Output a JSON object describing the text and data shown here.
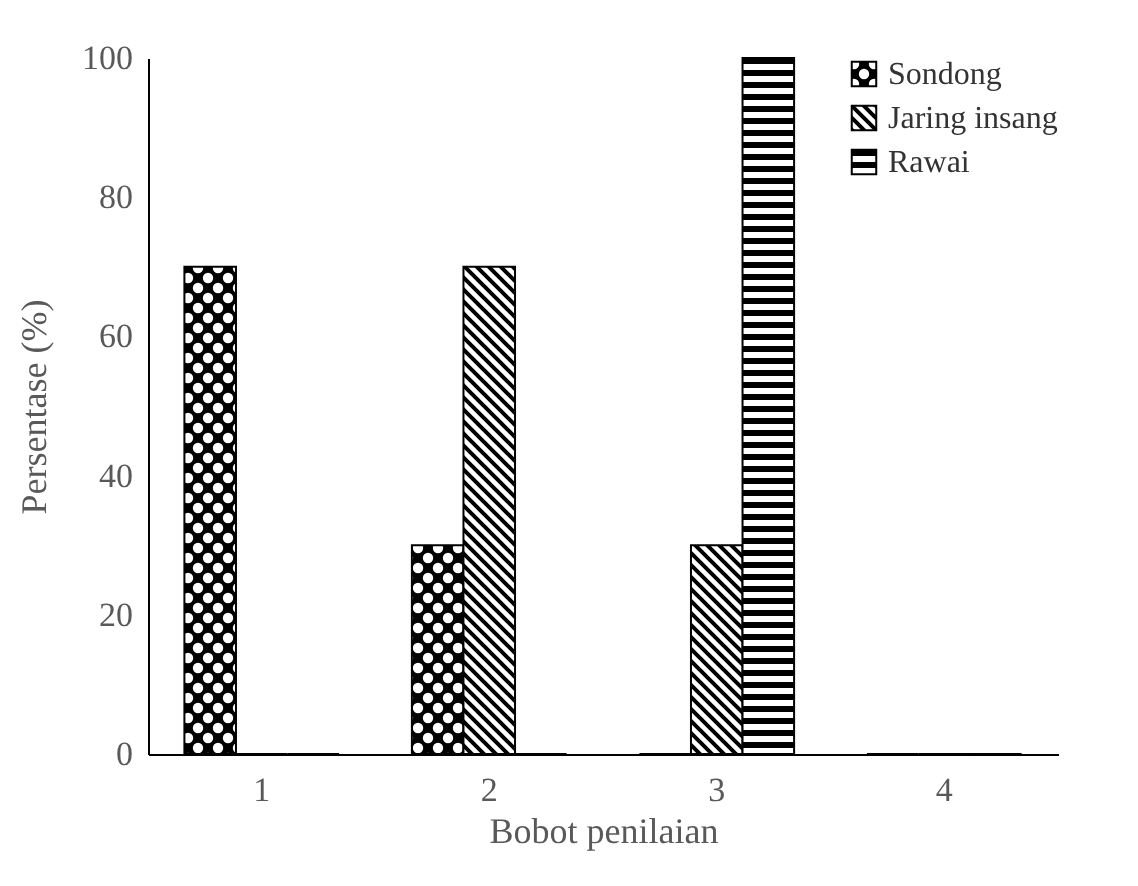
{
  "chart_data": {
    "type": "bar",
    "xlabel": "Bobot penilaian",
    "ylabel": "Persentase (%)",
    "categories": [
      "1",
      "2",
      "3",
      "4"
    ],
    "series": [
      {
        "name": "Sondong",
        "color": "#000000",
        "values": [
          70,
          30,
          0,
          0
        ]
      },
      {
        "name": "Jaring insang",
        "color": "#000000",
        "values": [
          0,
          70,
          30,
          0
        ]
      },
      {
        "name": "Rawai",
        "color": "#000000",
        "values": [
          0,
          0,
          100,
          0
        ]
      }
    ],
    "ylim": [
      0,
      100
    ],
    "yticks": [
      0,
      20,
      40,
      60,
      80,
      100
    ],
    "grid": false,
    "legend": "top right"
  }
}
